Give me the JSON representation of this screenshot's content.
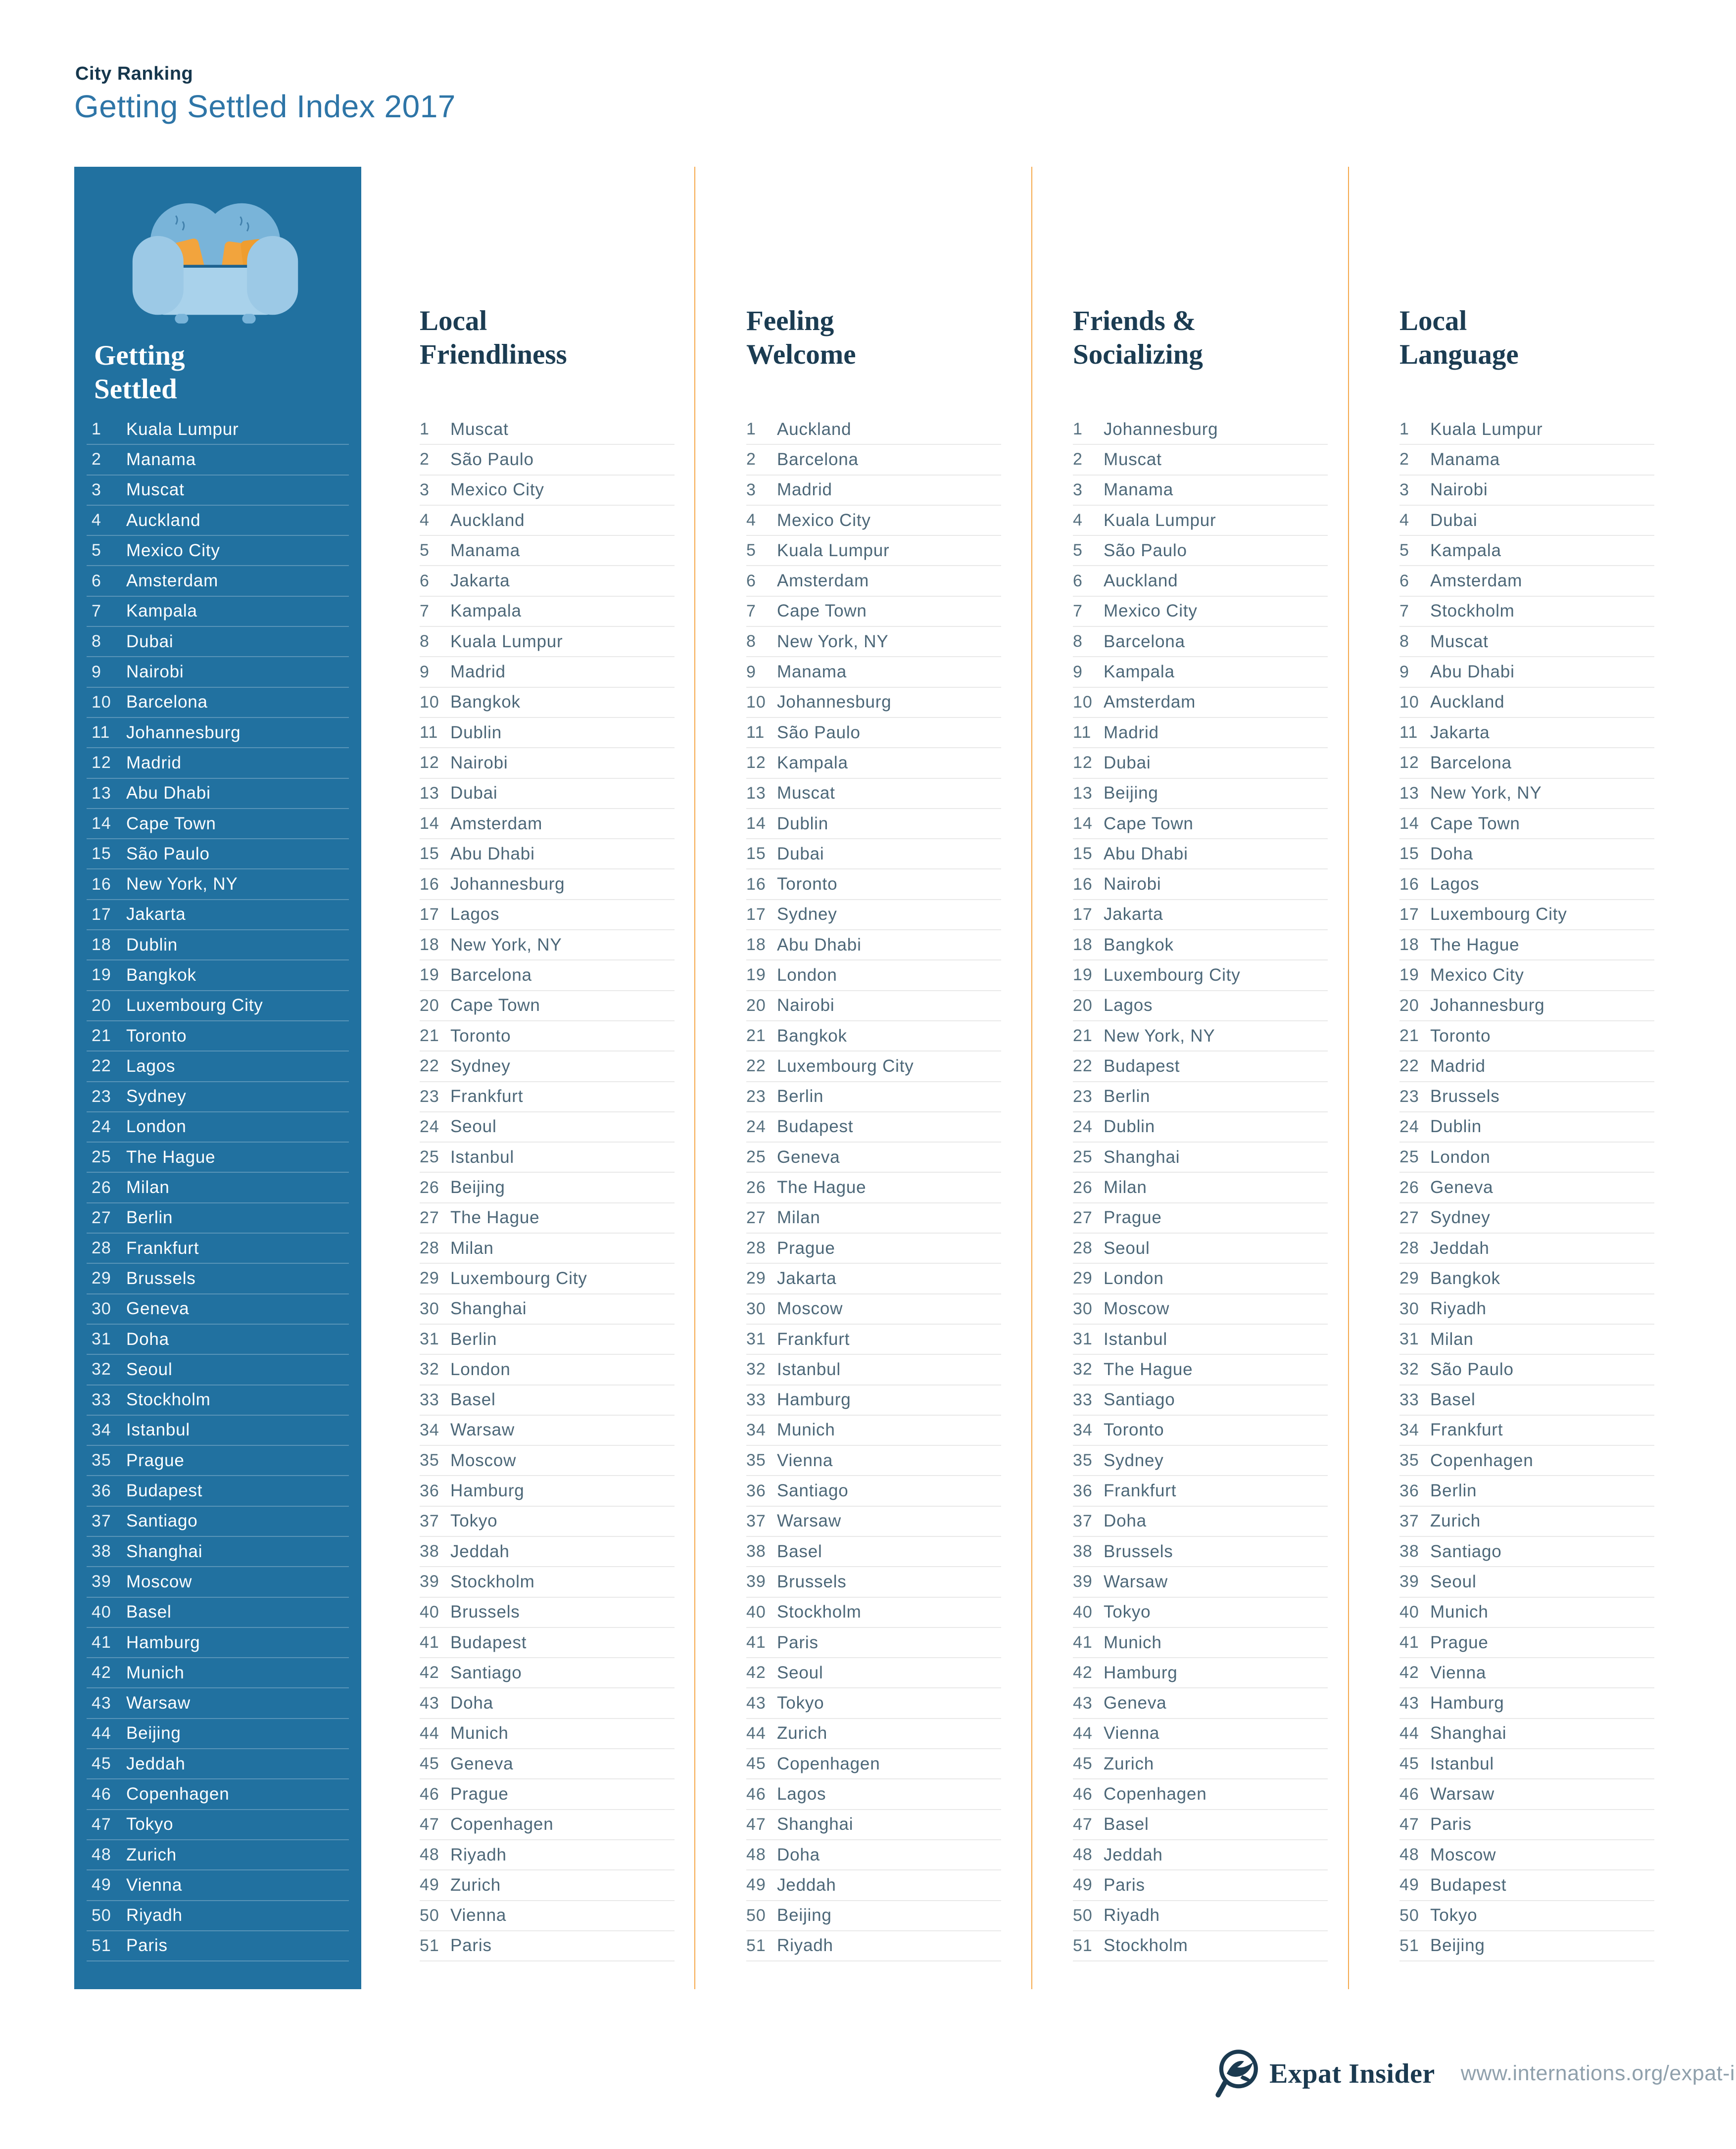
{
  "header": {
    "kicker": "City Ranking",
    "title": "Getting Settled Index 2017"
  },
  "colors": {
    "panel_blue": "#2171A0",
    "divider_orange": "#F5A94C",
    "couch_blue": "#79B4D9",
    "couch_arm_blue": "#9CC9E6",
    "pillow_orange": "#F2A43D",
    "heading_navy": "#1B3C52",
    "title_blue": "#2E75A7",
    "list_text": "#4C6778",
    "url_gray": "#8FA0AC"
  },
  "columns": [
    {
      "id": "getting-settled",
      "title_lines": [
        "Getting",
        "Settled"
      ],
      "icon": "couch-icon",
      "highlight": true,
      "entries": [
        {
          "rank": 1,
          "city": "Kuala Lumpur"
        },
        {
          "rank": 2,
          "city": "Manama"
        },
        {
          "rank": 3,
          "city": "Muscat"
        },
        {
          "rank": 4,
          "city": "Auckland"
        },
        {
          "rank": 5,
          "city": "Mexico City"
        },
        {
          "rank": 6,
          "city": "Amsterdam"
        },
        {
          "rank": 7,
          "city": "Kampala"
        },
        {
          "rank": 8,
          "city": "Dubai"
        },
        {
          "rank": 9,
          "city": "Nairobi"
        },
        {
          "rank": 10,
          "city": "Barcelona"
        },
        {
          "rank": 11,
          "city": "Johannesburg"
        },
        {
          "rank": 12,
          "city": "Madrid"
        },
        {
          "rank": 13,
          "city": "Abu Dhabi"
        },
        {
          "rank": 14,
          "city": "Cape Town"
        },
        {
          "rank": 15,
          "city": "São Paulo"
        },
        {
          "rank": 16,
          "city": "New York, NY"
        },
        {
          "rank": 17,
          "city": "Jakarta"
        },
        {
          "rank": 18,
          "city": "Dublin"
        },
        {
          "rank": 19,
          "city": "Bangkok"
        },
        {
          "rank": 20,
          "city": "Luxembourg City"
        },
        {
          "rank": 21,
          "city": "Toronto"
        },
        {
          "rank": 22,
          "city": "Lagos"
        },
        {
          "rank": 23,
          "city": "Sydney"
        },
        {
          "rank": 24,
          "city": "London"
        },
        {
          "rank": 25,
          "city": "The Hague"
        },
        {
          "rank": 26,
          "city": "Milan"
        },
        {
          "rank": 27,
          "city": "Berlin"
        },
        {
          "rank": 28,
          "city": "Frankfurt"
        },
        {
          "rank": 29,
          "city": "Brussels"
        },
        {
          "rank": 30,
          "city": "Geneva"
        },
        {
          "rank": 31,
          "city": "Doha"
        },
        {
          "rank": 32,
          "city": "Seoul"
        },
        {
          "rank": 33,
          "city": "Stockholm"
        },
        {
          "rank": 34,
          "city": "Istanbul"
        },
        {
          "rank": 35,
          "city": "Prague"
        },
        {
          "rank": 36,
          "city": "Budapest"
        },
        {
          "rank": 37,
          "city": "Santiago"
        },
        {
          "rank": 38,
          "city": "Shanghai"
        },
        {
          "rank": 39,
          "city": "Moscow"
        },
        {
          "rank": 40,
          "city": "Basel"
        },
        {
          "rank": 41,
          "city": "Hamburg"
        },
        {
          "rank": 42,
          "city": "Munich"
        },
        {
          "rank": 43,
          "city": "Warsaw"
        },
        {
          "rank": 44,
          "city": "Beijing"
        },
        {
          "rank": 45,
          "city": "Jeddah"
        },
        {
          "rank": 46,
          "city": "Copenhagen"
        },
        {
          "rank": 47,
          "city": "Tokyo"
        },
        {
          "rank": 48,
          "city": "Zurich"
        },
        {
          "rank": 49,
          "city": "Vienna"
        },
        {
          "rank": 50,
          "city": "Riyadh"
        },
        {
          "rank": 51,
          "city": "Paris"
        }
      ]
    },
    {
      "id": "local-friendliness",
      "title_lines": [
        "Local",
        "Friendliness"
      ],
      "entries": [
        {
          "rank": 1,
          "city": "Muscat"
        },
        {
          "rank": 2,
          "city": "São Paulo"
        },
        {
          "rank": 3,
          "city": "Mexico City"
        },
        {
          "rank": 4,
          "city": "Auckland"
        },
        {
          "rank": 5,
          "city": "Manama"
        },
        {
          "rank": 6,
          "city": "Jakarta"
        },
        {
          "rank": 7,
          "city": "Kampala"
        },
        {
          "rank": 8,
          "city": "Kuala Lumpur"
        },
        {
          "rank": 9,
          "city": "Madrid"
        },
        {
          "rank": 10,
          "city": "Bangkok"
        },
        {
          "rank": 11,
          "city": "Dublin"
        },
        {
          "rank": 12,
          "city": "Nairobi"
        },
        {
          "rank": 13,
          "city": "Dubai"
        },
        {
          "rank": 14,
          "city": "Amsterdam"
        },
        {
          "rank": 15,
          "city": "Abu Dhabi"
        },
        {
          "rank": 16,
          "city": "Johannesburg"
        },
        {
          "rank": 17,
          "city": "Lagos"
        },
        {
          "rank": 18,
          "city": "New York, NY"
        },
        {
          "rank": 19,
          "city": "Barcelona"
        },
        {
          "rank": 20,
          "city": "Cape Town"
        },
        {
          "rank": 21,
          "city": "Toronto"
        },
        {
          "rank": 22,
          "city": "Sydney"
        },
        {
          "rank": 23,
          "city": "Frankfurt"
        },
        {
          "rank": 24,
          "city": "Seoul"
        },
        {
          "rank": 25,
          "city": "Istanbul"
        },
        {
          "rank": 26,
          "city": "Beijing"
        },
        {
          "rank": 27,
          "city": "The Hague"
        },
        {
          "rank": 28,
          "city": "Milan"
        },
        {
          "rank": 29,
          "city": "Luxembourg City"
        },
        {
          "rank": 30,
          "city": "Shanghai"
        },
        {
          "rank": 31,
          "city": "Berlin"
        },
        {
          "rank": 32,
          "city": "London"
        },
        {
          "rank": 33,
          "city": "Basel"
        },
        {
          "rank": 34,
          "city": "Warsaw"
        },
        {
          "rank": 35,
          "city": "Moscow"
        },
        {
          "rank": 36,
          "city": "Hamburg"
        },
        {
          "rank": 37,
          "city": "Tokyo"
        },
        {
          "rank": 38,
          "city": "Jeddah"
        },
        {
          "rank": 39,
          "city": "Stockholm"
        },
        {
          "rank": 40,
          "city": "Brussels"
        },
        {
          "rank": 41,
          "city": "Budapest"
        },
        {
          "rank": 42,
          "city": "Santiago"
        },
        {
          "rank": 43,
          "city": "Doha"
        },
        {
          "rank": 44,
          "city": "Munich"
        },
        {
          "rank": 45,
          "city": "Geneva"
        },
        {
          "rank": 46,
          "city": "Prague"
        },
        {
          "rank": 47,
          "city": "Copenhagen"
        },
        {
          "rank": 48,
          "city": "Riyadh"
        },
        {
          "rank": 49,
          "city": "Zurich"
        },
        {
          "rank": 50,
          "city": "Vienna"
        },
        {
          "rank": 51,
          "city": "Paris"
        }
      ]
    },
    {
      "id": "feeling-welcome",
      "title_lines": [
        "Feeling",
        "Welcome"
      ],
      "entries": [
        {
          "rank": 1,
          "city": "Auckland"
        },
        {
          "rank": 2,
          "city": "Barcelona"
        },
        {
          "rank": 3,
          "city": "Madrid"
        },
        {
          "rank": 4,
          "city": "Mexico City"
        },
        {
          "rank": 5,
          "city": "Kuala Lumpur"
        },
        {
          "rank": 6,
          "city": "Amsterdam"
        },
        {
          "rank": 7,
          "city": "Cape Town"
        },
        {
          "rank": 8,
          "city": "New York, NY"
        },
        {
          "rank": 9,
          "city": "Manama"
        },
        {
          "rank": 10,
          "city": "Johannesburg"
        },
        {
          "rank": 11,
          "city": "São Paulo"
        },
        {
          "rank": 12,
          "city": "Kampala"
        },
        {
          "rank": 13,
          "city": "Muscat"
        },
        {
          "rank": 14,
          "city": "Dublin"
        },
        {
          "rank": 15,
          "city": "Dubai"
        },
        {
          "rank": 16,
          "city": "Toronto"
        },
        {
          "rank": 17,
          "city": "Sydney"
        },
        {
          "rank": 18,
          "city": "Abu Dhabi"
        },
        {
          "rank": 19,
          "city": "London"
        },
        {
          "rank": 20,
          "city": "Nairobi"
        },
        {
          "rank": 21,
          "city": "Bangkok"
        },
        {
          "rank": 22,
          "city": "Luxembourg City"
        },
        {
          "rank": 23,
          "city": "Berlin"
        },
        {
          "rank": 24,
          "city": "Budapest"
        },
        {
          "rank": 25,
          "city": "Geneva"
        },
        {
          "rank": 26,
          "city": "The Hague"
        },
        {
          "rank": 27,
          "city": "Milan"
        },
        {
          "rank": 28,
          "city": "Prague"
        },
        {
          "rank": 29,
          "city": "Jakarta"
        },
        {
          "rank": 30,
          "city": "Moscow"
        },
        {
          "rank": 31,
          "city": "Frankfurt"
        },
        {
          "rank": 32,
          "city": "Istanbul"
        },
        {
          "rank": 33,
          "city": "Hamburg"
        },
        {
          "rank": 34,
          "city": "Munich"
        },
        {
          "rank": 35,
          "city": "Vienna"
        },
        {
          "rank": 36,
          "city": "Santiago"
        },
        {
          "rank": 37,
          "city": "Warsaw"
        },
        {
          "rank": 38,
          "city": "Basel"
        },
        {
          "rank": 39,
          "city": "Brussels"
        },
        {
          "rank": 40,
          "city": "Stockholm"
        },
        {
          "rank": 41,
          "city": "Paris"
        },
        {
          "rank": 42,
          "city": "Seoul"
        },
        {
          "rank": 43,
          "city": "Tokyo"
        },
        {
          "rank": 44,
          "city": "Zurich"
        },
        {
          "rank": 45,
          "city": "Copenhagen"
        },
        {
          "rank": 46,
          "city": "Lagos"
        },
        {
          "rank": 47,
          "city": "Shanghai"
        },
        {
          "rank": 48,
          "city": "Doha"
        },
        {
          "rank": 49,
          "city": "Jeddah"
        },
        {
          "rank": 50,
          "city": "Beijing"
        },
        {
          "rank": 51,
          "city": "Riyadh"
        }
      ]
    },
    {
      "id": "friends-socializing",
      "title_lines": [
        "Friends &",
        "Socializing"
      ],
      "entries": [
        {
          "rank": 1,
          "city": "Johannesburg"
        },
        {
          "rank": 2,
          "city": "Muscat"
        },
        {
          "rank": 3,
          "city": "Manama"
        },
        {
          "rank": 4,
          "city": "Kuala Lumpur"
        },
        {
          "rank": 5,
          "city": "São Paulo"
        },
        {
          "rank": 6,
          "city": "Auckland"
        },
        {
          "rank": 7,
          "city": "Mexico City"
        },
        {
          "rank": 8,
          "city": "Barcelona"
        },
        {
          "rank": 9,
          "city": "Kampala"
        },
        {
          "rank": 10,
          "city": "Amsterdam"
        },
        {
          "rank": 11,
          "city": "Madrid"
        },
        {
          "rank": 12,
          "city": "Dubai"
        },
        {
          "rank": 13,
          "city": "Beijing"
        },
        {
          "rank": 14,
          "city": "Cape Town"
        },
        {
          "rank": 15,
          "city": "Abu Dhabi"
        },
        {
          "rank": 16,
          "city": "Nairobi"
        },
        {
          "rank": 17,
          "city": "Jakarta"
        },
        {
          "rank": 18,
          "city": "Bangkok"
        },
        {
          "rank": 19,
          "city": "Luxembourg City"
        },
        {
          "rank": 20,
          "city": "Lagos"
        },
        {
          "rank": 21,
          "city": "New York, NY"
        },
        {
          "rank": 22,
          "city": "Budapest"
        },
        {
          "rank": 23,
          "city": "Berlin"
        },
        {
          "rank": 24,
          "city": "Dublin"
        },
        {
          "rank": 25,
          "city": "Shanghai"
        },
        {
          "rank": 26,
          "city": "Milan"
        },
        {
          "rank": 27,
          "city": "Prague"
        },
        {
          "rank": 28,
          "city": "Seoul"
        },
        {
          "rank": 29,
          "city": "London"
        },
        {
          "rank": 30,
          "city": "Moscow"
        },
        {
          "rank": 31,
          "city": "Istanbul"
        },
        {
          "rank": 32,
          "city": "The Hague"
        },
        {
          "rank": 33,
          "city": "Santiago"
        },
        {
          "rank": 34,
          "city": "Toronto"
        },
        {
          "rank": 35,
          "city": "Sydney"
        },
        {
          "rank": 36,
          "city": "Frankfurt"
        },
        {
          "rank": 37,
          "city": "Doha"
        },
        {
          "rank": 38,
          "city": "Brussels"
        },
        {
          "rank": 39,
          "city": "Warsaw"
        },
        {
          "rank": 40,
          "city": "Tokyo"
        },
        {
          "rank": 41,
          "city": "Munich"
        },
        {
          "rank": 42,
          "city": "Hamburg"
        },
        {
          "rank": 43,
          "city": "Geneva"
        },
        {
          "rank": 44,
          "city": "Vienna"
        },
        {
          "rank": 45,
          "city": "Zurich"
        },
        {
          "rank": 46,
          "city": "Copenhagen"
        },
        {
          "rank": 47,
          "city": "Basel"
        },
        {
          "rank": 48,
          "city": "Jeddah"
        },
        {
          "rank": 49,
          "city": "Paris"
        },
        {
          "rank": 50,
          "city": "Riyadh"
        },
        {
          "rank": 51,
          "city": "Stockholm"
        }
      ]
    },
    {
      "id": "local-language",
      "title_lines": [
        "Local",
        "Language"
      ],
      "entries": [
        {
          "rank": 1,
          "city": "Kuala Lumpur"
        },
        {
          "rank": 2,
          "city": "Manama"
        },
        {
          "rank": 3,
          "city": "Nairobi"
        },
        {
          "rank": 4,
          "city": "Dubai"
        },
        {
          "rank": 5,
          "city": "Kampala"
        },
        {
          "rank": 6,
          "city": "Amsterdam"
        },
        {
          "rank": 7,
          "city": "Stockholm"
        },
        {
          "rank": 8,
          "city": "Muscat"
        },
        {
          "rank": 9,
          "city": "Abu Dhabi"
        },
        {
          "rank": 10,
          "city": "Auckland"
        },
        {
          "rank": 11,
          "city": "Jakarta"
        },
        {
          "rank": 12,
          "city": "Barcelona"
        },
        {
          "rank": 13,
          "city": "New York, NY"
        },
        {
          "rank": 14,
          "city": "Cape Town"
        },
        {
          "rank": 15,
          "city": "Doha"
        },
        {
          "rank": 16,
          "city": "Lagos"
        },
        {
          "rank": 17,
          "city": "Luxembourg City"
        },
        {
          "rank": 18,
          "city": "The Hague"
        },
        {
          "rank": 19,
          "city": "Mexico City"
        },
        {
          "rank": 20,
          "city": "Johannesburg"
        },
        {
          "rank": 21,
          "city": "Toronto"
        },
        {
          "rank": 22,
          "city": "Madrid"
        },
        {
          "rank": 23,
          "city": "Brussels"
        },
        {
          "rank": 24,
          "city": "Dublin"
        },
        {
          "rank": 25,
          "city": "London"
        },
        {
          "rank": 26,
          "city": "Geneva"
        },
        {
          "rank": 27,
          "city": "Sydney"
        },
        {
          "rank": 28,
          "city": "Jeddah"
        },
        {
          "rank": 29,
          "city": "Bangkok"
        },
        {
          "rank": 30,
          "city": "Riyadh"
        },
        {
          "rank": 31,
          "city": "Milan"
        },
        {
          "rank": 32,
          "city": "São Paulo"
        },
        {
          "rank": 33,
          "city": "Basel"
        },
        {
          "rank": 34,
          "city": "Frankfurt"
        },
        {
          "rank": 35,
          "city": "Copenhagen"
        },
        {
          "rank": 36,
          "city": "Berlin"
        },
        {
          "rank": 37,
          "city": "Zurich"
        },
        {
          "rank": 38,
          "city": "Santiago"
        },
        {
          "rank": 39,
          "city": "Seoul"
        },
        {
          "rank": 40,
          "city": "Munich"
        },
        {
          "rank": 41,
          "city": "Prague"
        },
        {
          "rank": 42,
          "city": "Vienna"
        },
        {
          "rank": 43,
          "city": "Hamburg"
        },
        {
          "rank": 44,
          "city": "Shanghai"
        },
        {
          "rank": 45,
          "city": "Istanbul"
        },
        {
          "rank": 46,
          "city": "Warsaw"
        },
        {
          "rank": 47,
          "city": "Paris"
        },
        {
          "rank": 48,
          "city": "Moscow"
        },
        {
          "rank": 49,
          "city": "Budapest"
        },
        {
          "rank": 50,
          "city": "Tokyo"
        },
        {
          "rank": 51,
          "city": "Beijing"
        }
      ]
    }
  ],
  "footer": {
    "brand": "Expat Insider",
    "url": "www.internations.org/expat-insider",
    "logo": "bird-magnifier-logo"
  }
}
